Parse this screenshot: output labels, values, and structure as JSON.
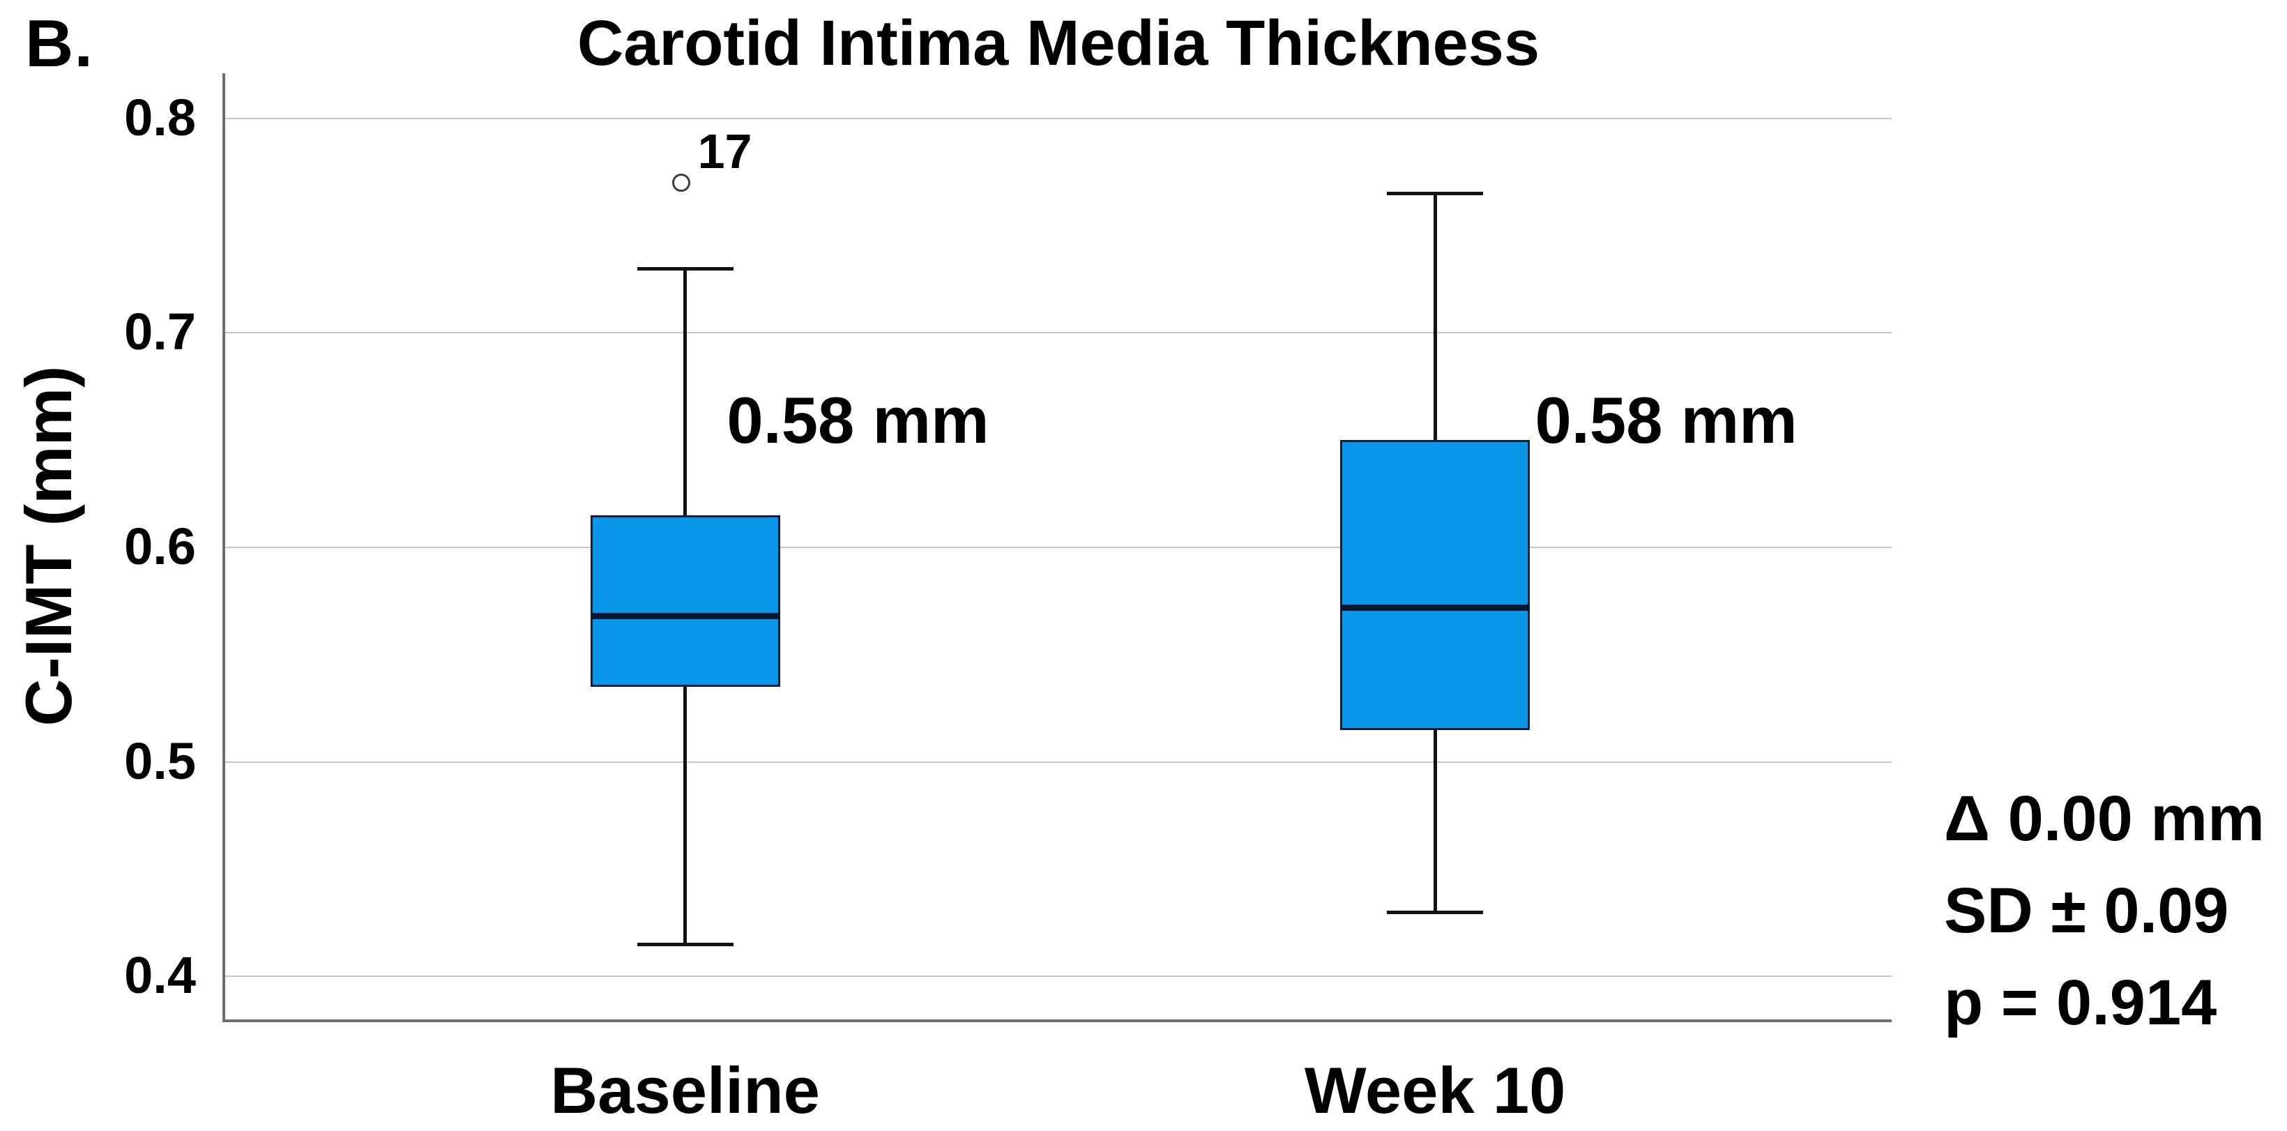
{
  "panel_label": "B.",
  "chart_data": {
    "type": "box",
    "title": "Carotid Intima Media Thickness",
    "xlabel": "",
    "ylabel": "C-IMT (mm)",
    "ylim": [
      0.38,
      0.821
    ],
    "yticks": [
      0.4,
      0.5,
      0.6,
      0.7,
      0.8
    ],
    "grid": "horizontal",
    "legend_position": "none",
    "categories": [
      "Baseline",
      "Week 10"
    ],
    "series": [
      {
        "category": "Baseline",
        "whisker_low": 0.415,
        "q1": 0.535,
        "median": 0.568,
        "q3": 0.615,
        "whisker_high": 0.73,
        "outliers": [
          {
            "value": 0.77,
            "label": "17"
          }
        ],
        "value_label": "0.58 mm",
        "center_frac": 0.276,
        "label_value": 0.659,
        "label_dx_frac": 0.025
      },
      {
        "category": "Week 10",
        "whisker_low": 0.43,
        "q1": 0.515,
        "median": 0.572,
        "q3": 0.65,
        "whisker_high": 0.765,
        "outliers": [],
        "value_label": "0.58 mm",
        "center_frac": 0.726,
        "label_value": 0.659,
        "label_dx_frac": 0.06
      }
    ],
    "annotations": [
      "Δ 0.00 mm",
      "SD ± 0.09",
      "p = 0.914"
    ],
    "colors": {
      "box_fill": "#0A96E8",
      "box_border": "#0D1F3D",
      "median": "#091630",
      "whisker": "#121212",
      "gridline": "#C6C6C6",
      "axis_line": "#6F6F6F",
      "outlier_stroke": "#3D3D3D",
      "text": "#000000",
      "background": "#FFFFFF"
    }
  }
}
